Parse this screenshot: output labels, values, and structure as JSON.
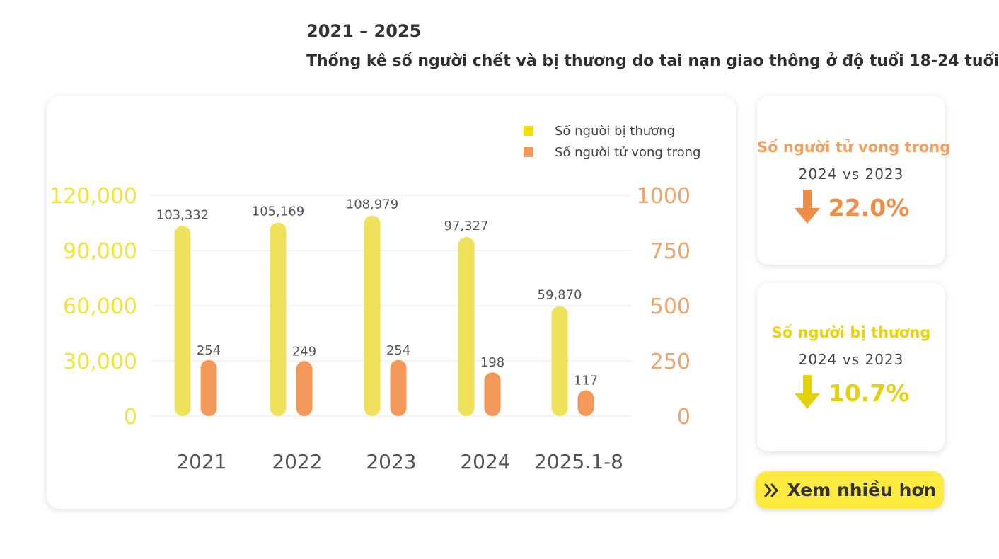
{
  "header": {
    "years": "2021 – 2025",
    "title": "Thống kê số người chết và bị thương do tai nạn giao thông ở độ tuổi 18-24 tuổi"
  },
  "chart_data": {
    "type": "bar",
    "categories": [
      "2021",
      "2022",
      "2023",
      "2024",
      "2025.1-8"
    ],
    "series": [
      {
        "name": "Số người bị thương",
        "axis": "left",
        "color": "#efe15c",
        "values": [
          103332,
          105169,
          108979,
          97327,
          59870
        ],
        "labels": [
          "103,332",
          "105,169",
          "108,979",
          "97,327",
          "59,870"
        ]
      },
      {
        "name": "Số người tử vong trong",
        "axis": "right",
        "color": "#f2995a",
        "values": [
          254,
          249,
          254,
          198,
          117
        ],
        "labels": [
          "254",
          "249",
          "254",
          "198",
          "117"
        ]
      }
    ],
    "y_left": {
      "ylim": [
        0,
        120000
      ],
      "ticks": [
        0,
        30000,
        60000,
        90000,
        120000
      ],
      "tick_labels": [
        "0",
        "30,000",
        "60,000",
        "90,000",
        "120,000"
      ],
      "color": "#f3e43a"
    },
    "y_right": {
      "ylim": [
        0,
        1000
      ],
      "ticks": [
        0,
        250,
        500,
        750,
        1000
      ],
      "tick_labels": [
        "0",
        "250",
        "500",
        "750",
        "1000"
      ],
      "color": "#f2a36a"
    },
    "grid": true,
    "legend_position": "top-right"
  },
  "cards": [
    {
      "title": "Số người tử vong trong",
      "compare": "2024  vs  2023",
      "change": "22.0%",
      "direction": "down",
      "color": "#ef8d47"
    },
    {
      "title": "Số người bị thương",
      "compare": "2024  vs  2023",
      "change": "10.7%",
      "direction": "down",
      "color": "#e6d20a"
    }
  ],
  "button": {
    "label": "Xem nhiều hơn",
    "icon": "double-chevron-right-icon"
  }
}
